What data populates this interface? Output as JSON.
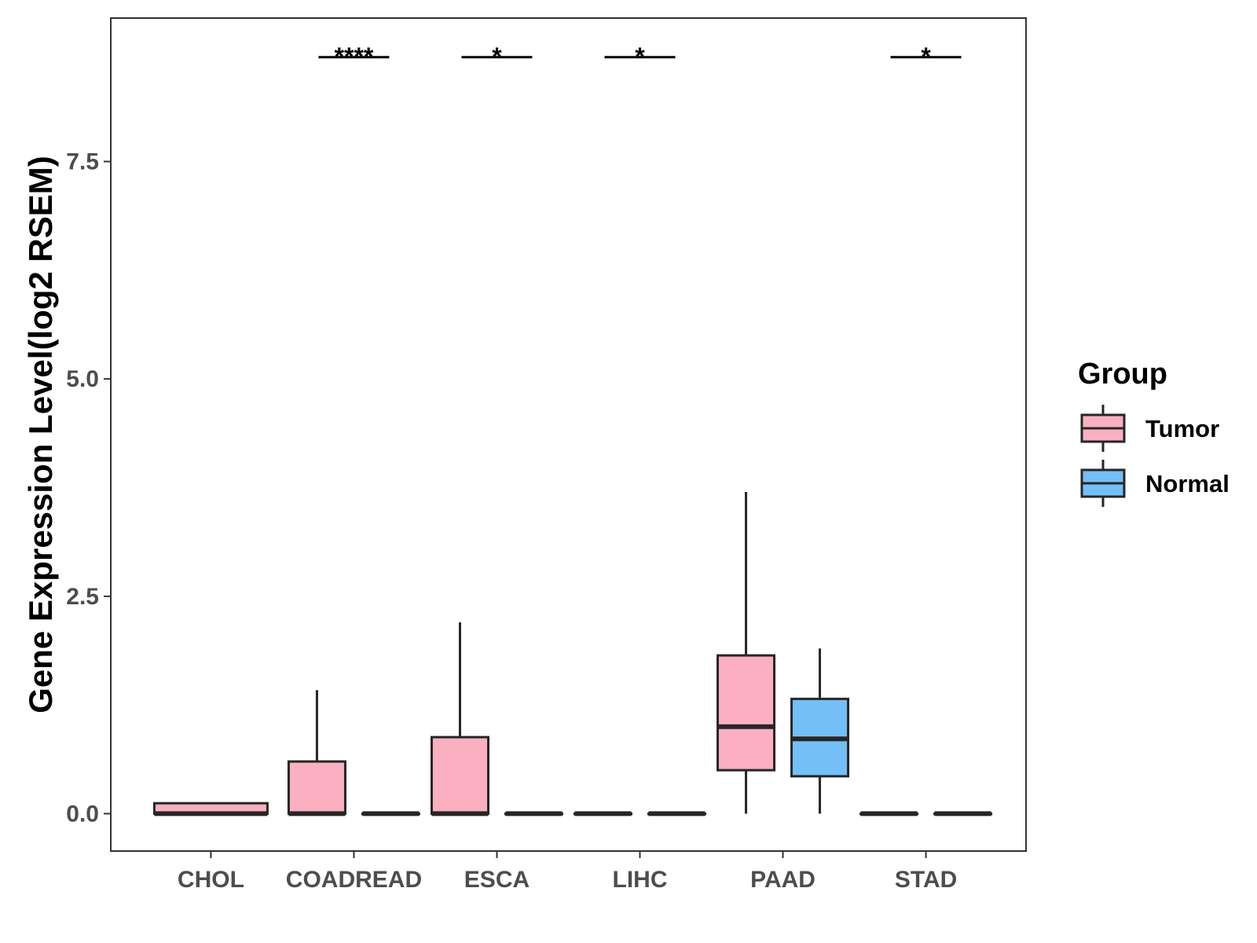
{
  "chart_data": {
    "type": "boxplot",
    "title": "",
    "xlabel": "",
    "ylabel": "Gene Expression Level(log2 RSEM)",
    "ylim": [
      -0.43,
      9.15
    ],
    "yticks": [
      "0.0",
      "2.5",
      "5.0",
      "7.5"
    ],
    "ytick_values": [
      0,
      2.5,
      5.0,
      7.5
    ],
    "grid": false,
    "legend": {
      "title": "Group",
      "position": "right",
      "items": [
        {
          "name": "Tumor",
          "color": "#FBB0C2"
        },
        {
          "name": "Normal",
          "color": "#74BFF7"
        }
      ]
    },
    "categories": [
      "CHOL",
      "COADREAD",
      "ESCA",
      "LIHC",
      "PAAD",
      "STAD"
    ],
    "series": [
      {
        "name": "Tumor",
        "color": "#FBB0C2",
        "boxes": [
          {
            "category": "CHOL",
            "min": 0,
            "q1": 0,
            "median": 0,
            "q3": 0.12,
            "max": 0.12
          },
          {
            "category": "COADREAD",
            "min": 0,
            "q1": 0,
            "median": 0,
            "q3": 0.6,
            "max": 1.42
          },
          {
            "category": "ESCA",
            "min": 0,
            "q1": 0,
            "median": 0,
            "q3": 0.88,
            "max": 2.2
          },
          {
            "category": "LIHC",
            "min": 0,
            "q1": 0,
            "median": 0,
            "q3": 0,
            "max": 0
          },
          {
            "category": "PAAD",
            "min": 0,
            "q1": 0.5,
            "median": 1.0,
            "q3": 1.82,
            "max": 3.7
          },
          {
            "category": "STAD",
            "min": 0,
            "q1": 0,
            "median": 0,
            "q3": 0,
            "max": 0
          }
        ]
      },
      {
        "name": "Normal",
        "color": "#74BFF7",
        "boxes": [
          {
            "category": "COADREAD",
            "min": 0,
            "q1": 0,
            "median": 0,
            "q3": 0,
            "max": 0
          },
          {
            "category": "ESCA",
            "min": 0,
            "q1": 0,
            "median": 0,
            "q3": 0,
            "max": 0
          },
          {
            "category": "LIHC",
            "min": 0,
            "q1": 0,
            "median": 0,
            "q3": 0,
            "max": 0
          },
          {
            "category": "PAAD",
            "min": 0,
            "q1": 0.43,
            "median": 0.86,
            "q3": 1.32,
            "max": 1.9
          },
          {
            "category": "STAD",
            "min": 0,
            "q1": 0,
            "median": 0,
            "q3": 0,
            "max": 0
          }
        ]
      }
    ],
    "annotations": [
      {
        "category": "COADREAD",
        "label": "****",
        "y": 8.7
      },
      {
        "category": "ESCA",
        "label": "*",
        "y": 8.7
      },
      {
        "category": "LIHC",
        "label": "*",
        "y": 8.7
      },
      {
        "category": "STAD",
        "label": "*",
        "y": 8.7
      }
    ],
    "outline_color": "#262626"
  }
}
